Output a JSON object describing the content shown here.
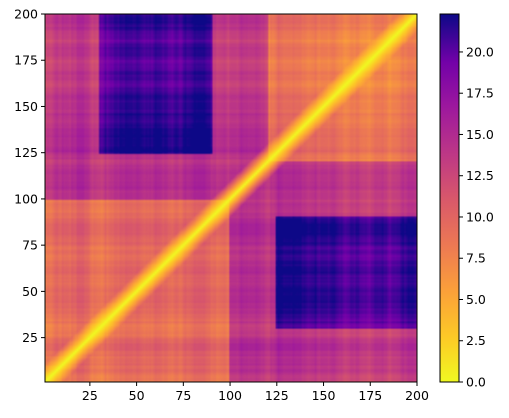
{
  "chart_data": {
    "type": "heatmap",
    "title": "",
    "xlabel": "",
    "ylabel": "",
    "xlim": [
      1,
      200
    ],
    "ylim": [
      1,
      200
    ],
    "xticks": [
      25,
      50,
      75,
      100,
      125,
      150,
      175,
      200
    ],
    "yticks": [
      25,
      50,
      75,
      100,
      125,
      150,
      175,
      200
    ],
    "matrix_shape": "symmetric 200x200 pairwise distance matrix, zero diagonal",
    "colormap": "plasma_r",
    "colorbar": {
      "range": [
        0,
        22.3
      ],
      "ticks": [
        0.0,
        2.5,
        5.0,
        7.5,
        10.0,
        12.5,
        15.0,
        17.5,
        20.0
      ],
      "tick_labels": [
        "0.0",
        "2.5",
        "5.0",
        "7.5",
        "10.0",
        "12.5",
        "15.0",
        "17.5",
        "20.0"
      ]
    },
    "regions": [
      {
        "x_range": [
          30,
          90
        ],
        "y_range": [
          125,
          200
        ],
        "value": 21
      },
      {
        "x_range": [
          125,
          200
        ],
        "y_range": [
          30,
          90
        ],
        "value": 21
      },
      {
        "x_range": [
          1,
          120
        ],
        "y_range": [
          100,
          200
        ],
        "value": 14
      },
      {
        "x_range": [
          100,
          200
        ],
        "y_range": [
          1,
          120
        ],
        "value": 14
      },
      {
        "x_range": [
          125,
          200
        ],
        "y_range": [
          125,
          200
        ],
        "value": 5
      },
      {
        "x_range": [
          1,
          90
        ],
        "y_range": [
          1,
          90
        ],
        "value": 5
      }
    ],
    "colors": {
      "low": "#f0f921",
      "mid": "#cc4778",
      "high": "#0d0887"
    }
  }
}
